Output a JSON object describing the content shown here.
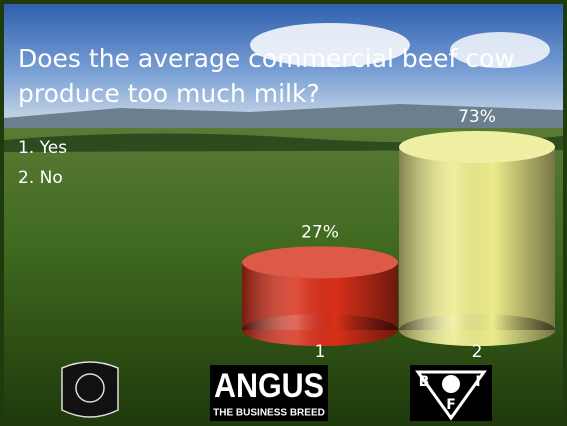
{
  "chart_data": {
    "type": "bar",
    "title_lines": [
      "Does the average commercial beef cow",
      "produce too much milk?"
    ],
    "options": [
      "1. Yes",
      "2. No"
    ],
    "categories": [
      "1",
      "2"
    ],
    "values": [
      27,
      73
    ],
    "value_labels": [
      "27%",
      "73%"
    ],
    "colors": [
      "#d8301a",
      "#ecec8c"
    ]
  },
  "footer": {
    "angus": [
      "ANGUS",
      "THE BUSINESS BREED"
    ],
    "bif": [
      "B",
      "I",
      "F"
    ]
  }
}
